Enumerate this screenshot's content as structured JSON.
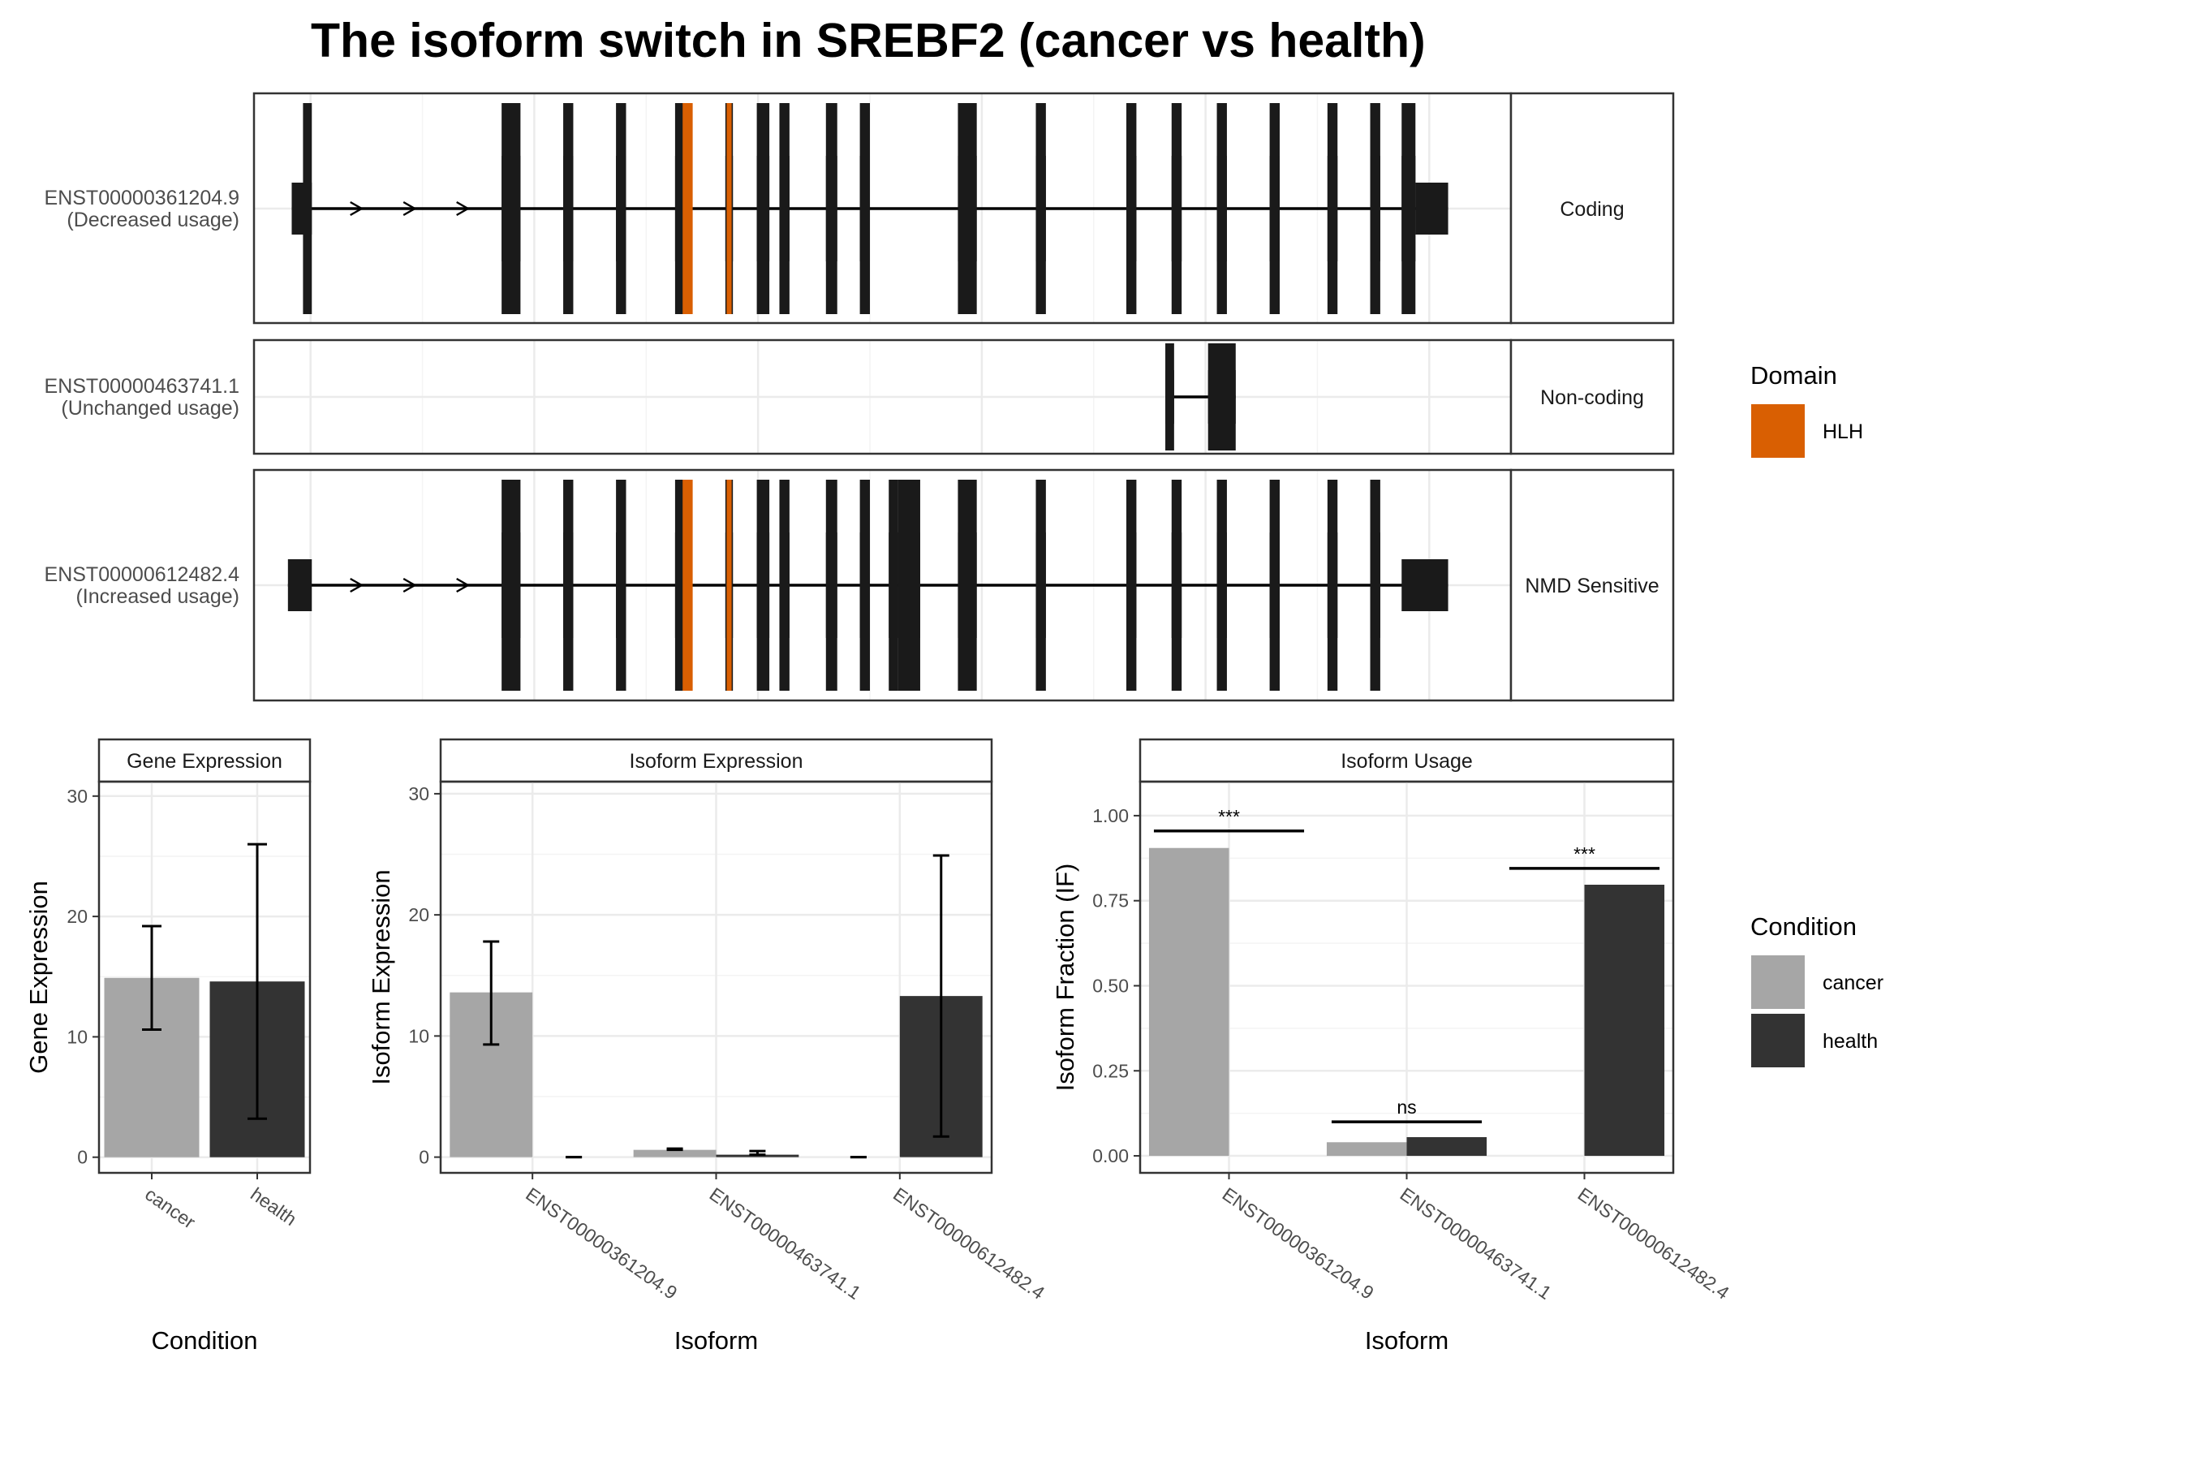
{
  "title": "The isoform switch in SREBF2 (cancer vs health)",
  "colors": {
    "exon": "#1a1a1a",
    "domain_hlh": "#d95f02",
    "cancer": "#a6a6a6",
    "health": "#333333",
    "grid": "#ebebeb"
  },
  "chart_data": [
    {
      "type": "gene-structure",
      "transcripts": [
        {
          "id": "ENST00000361204.9",
          "usage_label": "(Decreased usage)",
          "category": "Coding",
          "exons": [
            [
              0.03,
              0.046
            ],
            [
              0.197,
              0.212
            ],
            [
              0.246,
              0.254
            ],
            [
              0.288,
              0.296
            ],
            [
              0.335,
              0.343
            ],
            [
              0.375,
              0.381
            ],
            [
              0.4,
              0.41
            ],
            [
              0.418,
              0.426
            ],
            [
              0.455,
              0.464
            ],
            [
              0.482,
              0.49
            ],
            [
              0.56,
              0.575
            ],
            [
              0.622,
              0.63
            ],
            [
              0.694,
              0.702
            ],
            [
              0.73,
              0.738
            ],
            [
              0.766,
              0.774
            ],
            [
              0.808,
              0.816
            ],
            [
              0.854,
              0.862
            ],
            [
              0.888,
              0.896
            ],
            [
              0.913,
              0.924
            ],
            [
              0.924,
              0.95
            ]
          ],
          "domains": [
            [
              0.341,
              0.349
            ],
            [
              0.376,
              0.38
            ]
          ]
        },
        {
          "id": "ENST00000463741.1",
          "usage_label": "(Unchanged usage)",
          "category": "Non-coding",
          "exons": [
            [
              0.725,
              0.732
            ],
            [
              0.759,
              0.781
            ]
          ],
          "domains": []
        },
        {
          "id": "ENST00000612482.4",
          "usage_label": "(Increased usage)",
          "category": "NMD Sensitive",
          "exons": [
            [
              0.027,
              0.046
            ],
            [
              0.197,
              0.212
            ],
            [
              0.246,
              0.254
            ],
            [
              0.288,
              0.296
            ],
            [
              0.335,
              0.343
            ],
            [
              0.375,
              0.381
            ],
            [
              0.4,
              0.41
            ],
            [
              0.418,
              0.426
            ],
            [
              0.455,
              0.464
            ],
            [
              0.482,
              0.49
            ],
            [
              0.505,
              0.512
            ],
            [
              0.512,
              0.53
            ],
            [
              0.56,
              0.575
            ],
            [
              0.622,
              0.63
            ],
            [
              0.694,
              0.702
            ],
            [
              0.73,
              0.738
            ],
            [
              0.766,
              0.774
            ],
            [
              0.808,
              0.816
            ],
            [
              0.854,
              0.862
            ],
            [
              0.888,
              0.896
            ],
            [
              0.913,
              0.95
            ]
          ],
          "domains": [
            [
              0.341,
              0.349
            ],
            [
              0.376,
              0.38
            ]
          ]
        }
      ]
    },
    {
      "type": "bar",
      "strip": "Gene Expression",
      "xlabel": "Condition",
      "ylabel": "Gene Expression",
      "categories": [
        "cancer",
        "health"
      ],
      "values": [
        14.9,
        14.6
      ],
      "error_low": [
        10.6,
        3.2
      ],
      "error_high": [
        19.2,
        26.0
      ],
      "ylim": [
        -1.3,
        31.2
      ],
      "yticks": [
        0,
        10,
        20,
        30
      ]
    },
    {
      "type": "bar",
      "strip": "Isoform Expression",
      "xlabel": "Isoform",
      "ylabel": "Isoform Expression",
      "categories": [
        "ENST00000361204.9",
        "ENST00000463741.1",
        "ENST00000612482.4"
      ],
      "series": [
        {
          "name": "cancer",
          "values": [
            13.6,
            0.6,
            0.0
          ],
          "error_low": [
            9.3,
            0.6,
            0.0
          ],
          "error_high": [
            17.8,
            0.7,
            0.0
          ]
        },
        {
          "name": "health",
          "values": [
            0.0,
            0.2,
            13.3
          ],
          "error_low": [
            0.0,
            0.2,
            1.7
          ],
          "error_high": [
            0.0,
            0.5,
            24.9
          ]
        }
      ],
      "ylim": [
        -1.3,
        31.0
      ],
      "yticks": [
        0,
        10,
        20,
        30
      ]
    },
    {
      "type": "bar",
      "strip": "Isoform Usage",
      "xlabel": "Isoform",
      "ylabel": "Isoform Fraction (IF)",
      "categories": [
        "ENST00000361204.9",
        "ENST00000463741.1",
        "ENST00000612482.4"
      ],
      "series": [
        {
          "name": "cancer",
          "values": [
            0.905,
            0.04,
            0.0
          ]
        },
        {
          "name": "health",
          "values": [
            0.0,
            0.055,
            0.797
          ]
        }
      ],
      "significance": [
        {
          "category": 0,
          "label": "***",
          "y": 0.955
        },
        {
          "category": 1,
          "label": "ns",
          "y": 0.1
        },
        {
          "category": 2,
          "label": "***",
          "y": 0.845
        }
      ],
      "ylim": [
        -0.05,
        1.1
      ],
      "yticks": [
        0.0,
        0.25,
        0.5,
        0.75,
        1.0
      ],
      "ytick_labels": [
        "0.00",
        "0.25",
        "0.50",
        "0.75",
        "1.00"
      ]
    }
  ],
  "legends": {
    "domain": {
      "title": "Domain",
      "items": [
        {
          "label": "HLH",
          "color": "#d95f02"
        }
      ]
    },
    "condition": {
      "title": "Condition",
      "items": [
        {
          "label": "cancer",
          "color": "#a6a6a6"
        },
        {
          "label": "health",
          "color": "#333333"
        }
      ]
    }
  }
}
